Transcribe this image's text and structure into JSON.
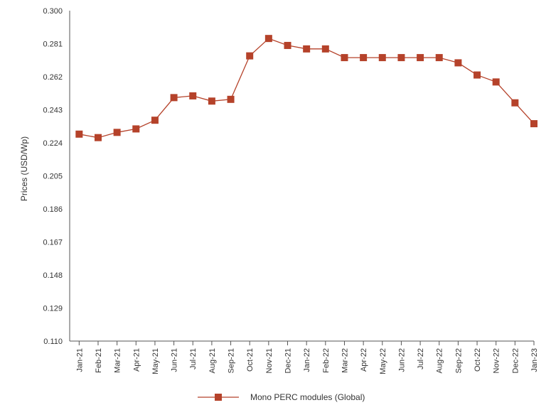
{
  "chart_data": {
    "type": "line",
    "title": "",
    "xlabel": "",
    "ylabel": "Prices (USD/Wp)",
    "ylim": [
      0.11,
      0.3
    ],
    "yticks": [
      "0.110",
      "0.129",
      "0.148",
      "0.167",
      "0.186",
      "0.205",
      "0.224",
      "0.243",
      "0.262",
      "0.281",
      "0.300"
    ],
    "categories": [
      "Jan-21",
      "Feb-21",
      "Mar-21",
      "Apr-21",
      "May-21",
      "Jun-21",
      "Jul-21",
      "Aug-21",
      "Sep-21",
      "Oct-21",
      "Nov-21",
      "Dec-21",
      "Jan-22",
      "Feb-22",
      "Mar-22",
      "Apr-22",
      "May-22",
      "Jun-22",
      "Jul-22",
      "Aug-22",
      "Sep-22",
      "Oct-22",
      "Nov-22",
      "Dec-22",
      "Jan-23"
    ],
    "series": [
      {
        "name": "Mono PERC modules (Global)",
        "color": "#b5422a",
        "values": [
          0.229,
          0.227,
          0.23,
          0.232,
          0.237,
          0.25,
          0.251,
          0.248,
          0.249,
          0.274,
          0.284,
          0.28,
          0.278,
          0.278,
          0.273,
          0.273,
          0.273,
          0.273,
          0.273,
          0.273,
          0.27,
          0.263,
          0.259,
          0.247,
          0.235
        ]
      }
    ],
    "legend": "bottom",
    "grid": false
  }
}
